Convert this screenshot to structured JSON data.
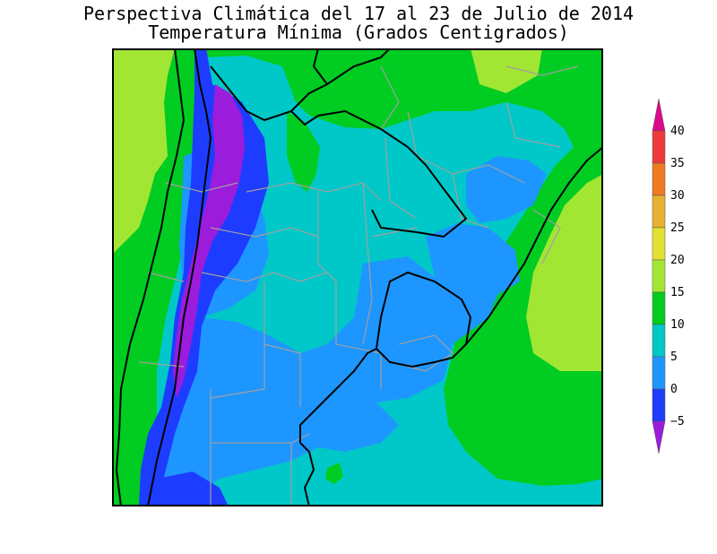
{
  "title_line1": "Perspectiva Climática del 17 al 23 de Julio de 2014",
  "title_line2": "Temperatura Mínima (Grados Centigrados)",
  "colorbar": {
    "labels": [
      "40",
      "35",
      "30",
      "25",
      "20",
      "15",
      "10",
      "5",
      "0",
      "−5"
    ],
    "bins": [
      {
        "color": "#dd0a8c"
      },
      {
        "color": "#ee3a3a"
      },
      {
        "color": "#f07a22"
      },
      {
        "color": "#e6b12e"
      },
      {
        "color": "#e3e032"
      },
      {
        "color": "#a2e634"
      },
      {
        "color": "#00cc21"
      },
      {
        "color": "#00c8c8"
      },
      {
        "color": "#1e96ff"
      },
      {
        "color": "#1e3cff"
      },
      {
        "color": "#9c1cdc"
      }
    ]
  },
  "colors": {
    "purple": "#9c1cdc",
    "blue": "#1e3cff",
    "light_blue": "#1e96ff",
    "cyan": "#00c8c8",
    "green": "#00cc21",
    "light_green": "#a2e634",
    "border_country": "#000000",
    "border_province": "#a0a0a0"
  }
}
